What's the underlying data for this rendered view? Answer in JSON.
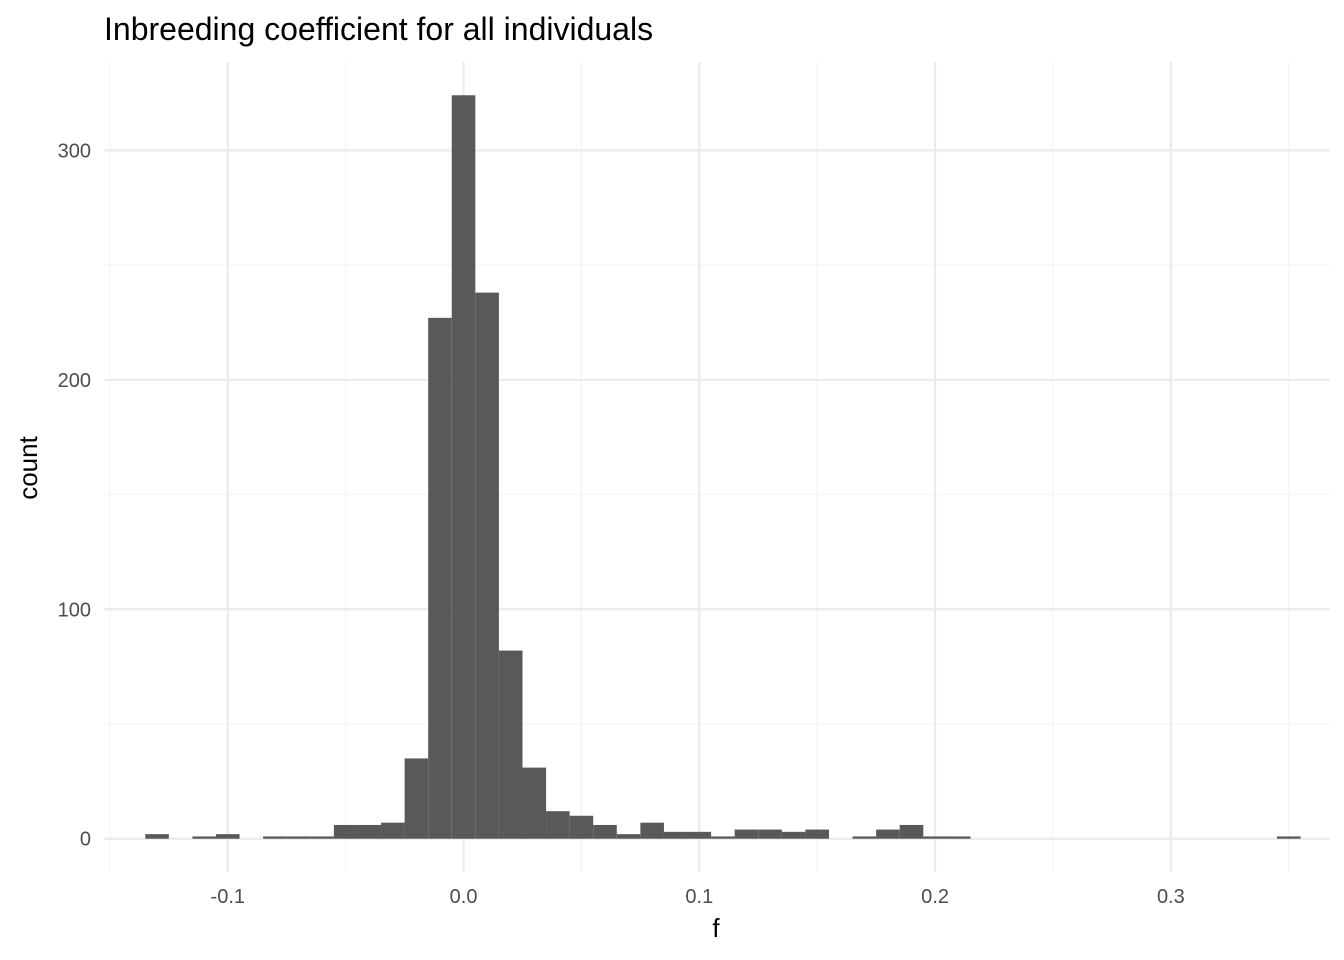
{
  "chart_data": {
    "type": "bar",
    "title": "Inbreeding coefficient for all individuals",
    "xlabel": "f",
    "ylabel": "count",
    "xlim": [
      -0.1525,
      0.3675
    ],
    "ylim": [
      -14.5,
      338.5
    ],
    "x_ticks": [
      -0.1,
      0.0,
      0.1,
      0.2,
      0.3
    ],
    "x_tick_labels": [
      "-0.1",
      "0.0",
      "0.1",
      "0.2",
      "0.3"
    ],
    "x_minor_ticks": [
      -0.15,
      -0.05,
      0.05,
      0.15,
      0.25,
      0.35
    ],
    "y_ticks": [
      0,
      100,
      200,
      300
    ],
    "y_tick_labels": [
      "0",
      "100",
      "200",
      "300"
    ],
    "y_minor_ticks": [
      50,
      150,
      250
    ],
    "grid": true,
    "bin_width": 0.01,
    "bins": [
      {
        "x0": -0.135,
        "x1": -0.125,
        "count": 2
      },
      {
        "x0": -0.115,
        "x1": -0.105,
        "count": 1
      },
      {
        "x0": -0.105,
        "x1": -0.095,
        "count": 2
      },
      {
        "x0": -0.085,
        "x1": -0.075,
        "count": 1
      },
      {
        "x0": -0.075,
        "x1": -0.065,
        "count": 1
      },
      {
        "x0": -0.065,
        "x1": -0.055,
        "count": 1
      },
      {
        "x0": -0.055,
        "x1": -0.045,
        "count": 6
      },
      {
        "x0": -0.045,
        "x1": -0.035,
        "count": 6
      },
      {
        "x0": -0.035,
        "x1": -0.025,
        "count": 7
      },
      {
        "x0": -0.025,
        "x1": -0.015,
        "count": 35
      },
      {
        "x0": -0.015,
        "x1": -0.005,
        "count": 227
      },
      {
        "x0": -0.005,
        "x1": 0.005,
        "count": 324
      },
      {
        "x0": 0.005,
        "x1": 0.015,
        "count": 238
      },
      {
        "x0": 0.015,
        "x1": 0.025,
        "count": 82
      },
      {
        "x0": 0.025,
        "x1": 0.035,
        "count": 31
      },
      {
        "x0": 0.035,
        "x1": 0.045,
        "count": 12
      },
      {
        "x0": 0.045,
        "x1": 0.055,
        "count": 10
      },
      {
        "x0": 0.055,
        "x1": 0.065,
        "count": 6
      },
      {
        "x0": 0.065,
        "x1": 0.075,
        "count": 2
      },
      {
        "x0": 0.075,
        "x1": 0.085,
        "count": 7
      },
      {
        "x0": 0.085,
        "x1": 0.095,
        "count": 3
      },
      {
        "x0": 0.095,
        "x1": 0.105,
        "count": 3
      },
      {
        "x0": 0.105,
        "x1": 0.115,
        "count": 1
      },
      {
        "x0": 0.115,
        "x1": 0.125,
        "count": 4
      },
      {
        "x0": 0.125,
        "x1": 0.135,
        "count": 4
      },
      {
        "x0": 0.135,
        "x1": 0.145,
        "count": 3
      },
      {
        "x0": 0.145,
        "x1": 0.155,
        "count": 4
      },
      {
        "x0": 0.165,
        "x1": 0.175,
        "count": 1
      },
      {
        "x0": 0.175,
        "x1": 0.185,
        "count": 4
      },
      {
        "x0": 0.185,
        "x1": 0.195,
        "count": 6
      },
      {
        "x0": 0.195,
        "x1": 0.205,
        "count": 1
      },
      {
        "x0": 0.205,
        "x1": 0.215,
        "count": 1
      },
      {
        "x0": 0.345,
        "x1": 0.355,
        "count": 1
      }
    ],
    "colors": {
      "bar": "#595959",
      "grid_major": "#ebebeb",
      "grid_minor": "#f3f3f3",
      "tick_label": "#4d4d4d",
      "text": "#000000"
    }
  }
}
